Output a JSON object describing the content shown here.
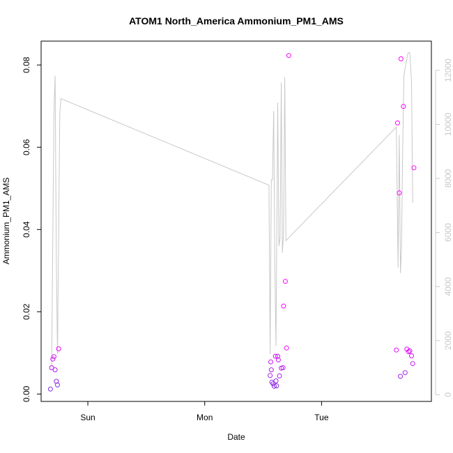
{
  "chart_data": {
    "type": "scatter",
    "title": "ATOM1 North_America Ammonium_PM1_AMS",
    "xlabel": "Date",
    "ylabel": "Ammonium_PM1_AMS",
    "x_ticks": [
      "Sun",
      "Mon",
      "Tue"
    ],
    "x_tick_values": [
      1.0,
      2.0,
      3.0
    ],
    "xlim": [
      0.6,
      3.94
    ],
    "ylim": [
      -0.0018,
      0.0858
    ],
    "y_ticks": [
      0.0,
      0.02,
      0.04,
      0.06,
      0.08
    ],
    "y_tick_labels": [
      "0.00",
      "0.02",
      "0.04",
      "0.06",
      "0.08"
    ],
    "y2lim": [
      -250,
      13080
    ],
    "y2_ticks": [
      0,
      2000,
      4000,
      6000,
      8000,
      10000,
      12000
    ],
    "y2_tick_labels": [
      "0",
      "2000",
      "4000",
      "6000",
      "8000",
      "10000",
      "12000"
    ],
    "grid": false,
    "colors": {
      "line": "#c8c8c8",
      "points_low": "#7b2be2",
      "points_high": "#ff00ff",
      "axis": "#000000",
      "right_axis": "#c8c8c8"
    },
    "series": [
      {
        "type": "points",
        "points": [
          [
            0.68,
            0.0012
          ],
          [
            0.69,
            0.0064
          ],
          [
            0.7,
            0.0085
          ],
          [
            0.71,
            0.0091
          ],
          [
            0.72,
            0.0059
          ],
          [
            0.73,
            0.0031
          ],
          [
            0.74,
            0.0022
          ],
          [
            0.75,
            0.011
          ],
          [
            2.56,
            0.0045
          ],
          [
            2.565,
            0.0078
          ],
          [
            2.57,
            0.0059
          ],
          [
            2.575,
            0.0029
          ],
          [
            2.585,
            0.0025
          ],
          [
            2.595,
            0.0019
          ],
          [
            2.605,
            0.0092
          ],
          [
            2.61,
            0.0032
          ],
          [
            2.615,
            0.002
          ],
          [
            2.625,
            0.0092
          ],
          [
            2.63,
            0.0083
          ],
          [
            2.64,
            0.0044
          ],
          [
            2.655,
            0.0063
          ],
          [
            2.67,
            0.0064
          ],
          [
            2.675,
            0.0214
          ],
          [
            2.69,
            0.0274
          ],
          [
            2.7,
            0.0112
          ],
          [
            2.72,
            0.0823
          ],
          [
            3.64,
            0.0107
          ],
          [
            3.65,
            0.0659
          ],
          [
            3.665,
            0.0489
          ],
          [
            3.675,
            0.0043
          ],
          [
            3.68,
            0.0815
          ],
          [
            3.7,
            0.0699
          ],
          [
            3.715,
            0.0052
          ],
          [
            3.73,
            0.0109
          ],
          [
            3.745,
            0.0103
          ],
          [
            3.755,
            0.0105
          ],
          [
            3.77,
            0.0093
          ],
          [
            3.78,
            0.0074
          ],
          [
            3.79,
            0.055
          ]
        ]
      },
      {
        "type": "line",
        "axis": "right",
        "points": [
          [
            0.69,
            1000
          ],
          [
            0.71,
            10500
          ],
          [
            0.72,
            11800
          ],
          [
            0.73,
            5000
          ],
          [
            0.74,
            1500
          ],
          [
            0.76,
            10400
          ],
          [
            0.77,
            10950
          ],
          [
            2.55,
            7750
          ],
          [
            2.56,
            1500
          ],
          [
            2.57,
            7950
          ],
          [
            2.58,
            7950
          ],
          [
            2.59,
            10500
          ],
          [
            2.6,
            4900
          ],
          [
            2.61,
            1800
          ],
          [
            2.625,
            10800
          ],
          [
            2.635,
            5500
          ],
          [
            2.645,
            5800
          ],
          [
            2.655,
            11550
          ],
          [
            2.665,
            5250
          ],
          [
            2.675,
            6000
          ],
          [
            2.685,
            11750
          ],
          [
            2.695,
            5700
          ],
          [
            3.64,
            9900
          ],
          [
            3.655,
            4700
          ],
          [
            3.665,
            9600
          ],
          [
            3.675,
            4500
          ],
          [
            3.685,
            5500
          ],
          [
            3.695,
            9300
          ],
          [
            3.705,
            11800
          ],
          [
            3.72,
            12200
          ],
          [
            3.74,
            12650
          ],
          [
            3.755,
            12650
          ],
          [
            3.77,
            11600
          ],
          [
            3.78,
            7100
          ]
        ]
      }
    ]
  }
}
